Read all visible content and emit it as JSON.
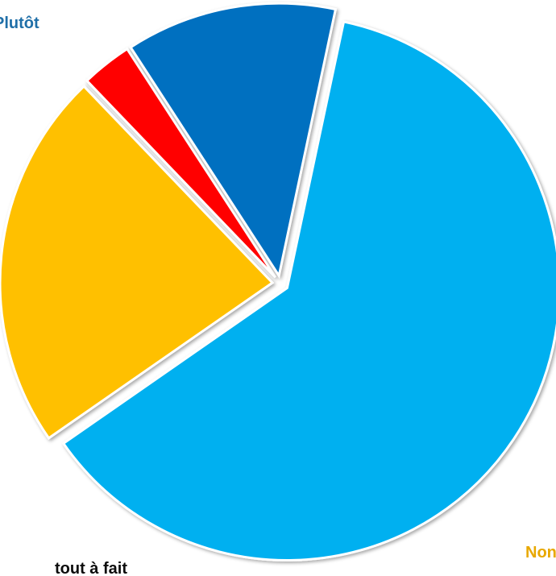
{
  "chart_data": {
    "type": "pie",
    "slices": [
      {
        "label": "Plutôt",
        "value": 62.0,
        "color": "#00B0F0",
        "label_color": "#1F6FA8"
      },
      {
        "label": "Non",
        "value": 22.5,
        "color": "#FFC000",
        "label_color": "#E8A800"
      },
      {
        "label": "",
        "value": 3.0,
        "color": "#FF0000",
        "label_color": "#FF0000"
      },
      {
        "label": "tout à fait",
        "value": 12.5,
        "color": "#0070C0",
        "label_color": "#0D0D0D"
      }
    ],
    "exploded": true,
    "legend": "none"
  }
}
